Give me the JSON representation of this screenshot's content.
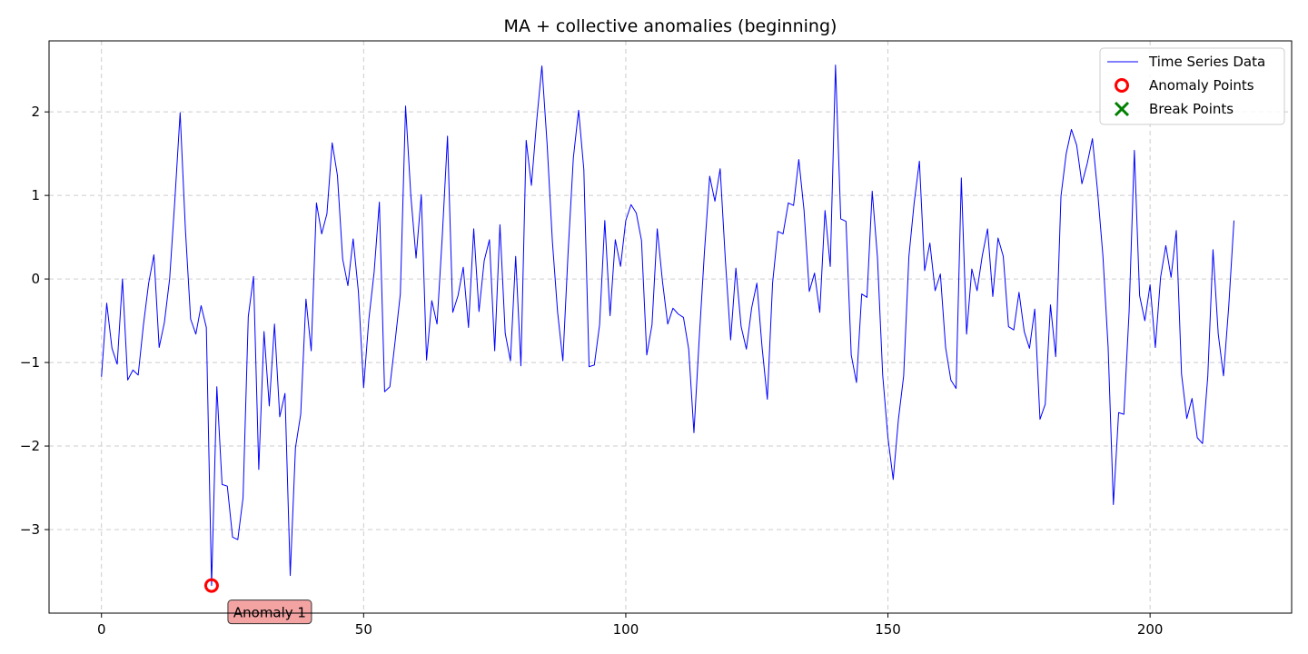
{
  "chart_data": {
    "type": "line",
    "title": "MA + collective anomalies (beginning)",
    "xlabel": "",
    "ylabel": "",
    "xlim": [
      -10,
      227
    ],
    "ylim": [
      -4.0,
      2.85
    ],
    "x_ticks": [
      0,
      50,
      100,
      150,
      200
    ],
    "y_ticks": [
      -3,
      -2,
      -1,
      0,
      1,
      2
    ],
    "grid": true,
    "legend_position": "top-right",
    "legend": [
      {
        "label": "Time Series Data",
        "marker": "line",
        "color": "#0000ff"
      },
      {
        "label": "Anomaly Points",
        "marker": "circle",
        "color": "#ff0000"
      },
      {
        "label": "Break Points",
        "marker": "x",
        "color": "#008000"
      }
    ],
    "series": [
      {
        "name": "Time Series Data",
        "color": "#0000ff",
        "x_start": 0,
        "x_step": 1,
        "values": [
          -1.17,
          -0.29,
          -0.83,
          -1.02,
          0.0,
          -1.21,
          -1.09,
          -1.15,
          -0.55,
          -0.05,
          0.29,
          -0.82,
          -0.52,
          0.0,
          0.95,
          1.99,
          0.6,
          -0.48,
          -0.66,
          -0.32,
          -0.58,
          -3.67,
          -1.29,
          -2.46,
          -2.48,
          -3.09,
          -3.12,
          -2.62,
          -0.45,
          0.03,
          -2.28,
          -0.63,
          -1.52,
          -0.54,
          -1.65,
          -1.37,
          -3.55,
          -2.02,
          -1.62,
          -0.24,
          -0.86,
          0.91,
          0.54,
          0.78,
          1.63,
          1.24,
          0.24,
          -0.08,
          0.48,
          -0.15,
          -1.3,
          -0.48,
          0.08,
          0.92,
          -1.35,
          -1.29,
          -0.75,
          -0.18,
          2.07,
          1.0,
          0.25,
          1.01,
          -0.97,
          -0.26,
          -0.54,
          0.51,
          1.71,
          -0.4,
          -0.2,
          0.14,
          -0.58,
          0.6,
          -0.39,
          0.22,
          0.47,
          -0.86,
          0.65,
          -0.65,
          -0.98,
          0.27,
          -1.04,
          1.66,
          1.12,
          1.89,
          2.55,
          1.61,
          0.45,
          -0.4,
          -0.98,
          0.32,
          1.45,
          2.02,
          1.31,
          -1.05,
          -1.03,
          -0.55,
          0.7,
          -0.44,
          0.47,
          0.15,
          0.7,
          0.89,
          0.79,
          0.46,
          -0.91,
          -0.55,
          0.6,
          -0.03,
          -0.54,
          -0.35,
          -0.42,
          -0.46,
          -0.84,
          -1.84,
          -0.72,
          0.32,
          1.23,
          0.93,
          1.32,
          0.22,
          -0.73,
          0.13,
          -0.57,
          -0.84,
          -0.35,
          -0.05,
          -0.82,
          -1.44,
          -0.05,
          0.57,
          0.54,
          0.91,
          0.88,
          1.43,
          0.82,
          -0.15,
          0.07,
          -0.4,
          0.82,
          0.15,
          2.56,
          0.72,
          0.69,
          -0.91,
          -1.24,
          -0.18,
          -0.22,
          1.05,
          0.26,
          -1.15,
          -1.9,
          -2.4,
          -1.68,
          -1.16,
          0.27,
          0.91,
          1.41,
          0.1,
          0.43,
          -0.14,
          0.06,
          -0.82,
          -1.21,
          -1.31,
          1.21,
          -0.66,
          0.12,
          -0.14,
          0.28,
          0.6,
          -0.21,
          0.49,
          0.27,
          -0.57,
          -0.61,
          -0.16,
          -0.63,
          -0.83,
          -0.36,
          -1.68,
          -1.5,
          -0.31,
          -0.93,
          0.99,
          1.5,
          1.79,
          1.6,
          1.14,
          1.38,
          1.68,
          1.04,
          0.28,
          -0.82,
          -2.7,
          -1.6,
          -1.62,
          -0.39,
          1.54,
          -0.2,
          -0.5,
          -0.07,
          -0.82,
          0.02,
          0.4,
          0.02,
          0.58,
          -1.14,
          -1.67,
          -1.43,
          -1.9,
          -1.97,
          -1.17,
          0.35,
          -0.66,
          -1.16,
          -0.33,
          0.7
        ]
      }
    ],
    "anomaly_points": [
      {
        "x": 21,
        "y": -3.67
      }
    ],
    "break_points": [],
    "annotations": [
      {
        "text": "Anomaly 1",
        "x": 21,
        "y": -3.67
      }
    ]
  }
}
